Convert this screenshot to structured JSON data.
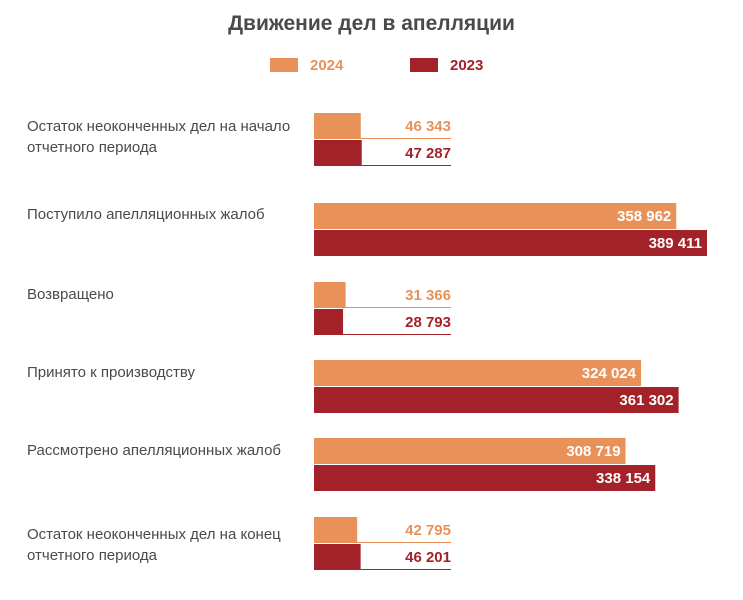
{
  "chart_data": {
    "type": "bar",
    "orientation": "horizontal",
    "title": "Движение дел в апелляции",
    "legend_placement": "top",
    "categories": [
      "Остаток неоконченных дел на начало отчетного периода",
      "Поступило апелляционных жалоб",
      "Возвращено",
      "Принято к производству",
      "Рассмотрено апелляционных жалоб",
      "Остаток неоконченных дел на конец отчетного периода"
    ],
    "series": [
      {
        "name": "2024",
        "color": "#e8925a",
        "values": [
          46343,
          358962,
          31366,
          324024,
          308719,
          42795
        ],
        "labels": [
          "46 343",
          "358 962",
          "31 366",
          "324 024",
          "308 719",
          "42 795"
        ]
      },
      {
        "name": "2023",
        "color": "#a3222a",
        "values": [
          47287,
          389411,
          28793,
          361302,
          338154,
          46201
        ],
        "labels": [
          "47 287",
          "389 411",
          "28 793",
          "361 302",
          "338 154",
          "46 201"
        ]
      }
    ],
    "grid": false
  }
}
